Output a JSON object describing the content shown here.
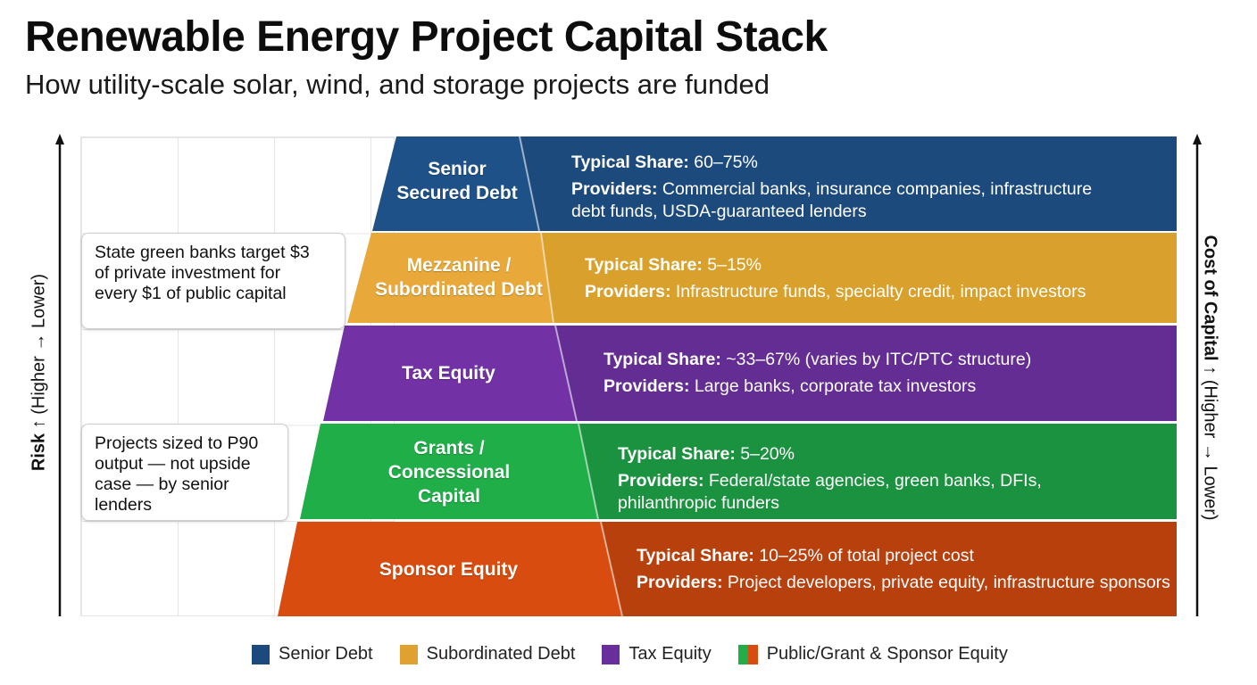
{
  "title": "Renewable Energy Project Capital Stack",
  "subtitle": "How utility-scale solar, wind, and storage projects are funded",
  "tiers": [
    {
      "name_lines": [
        "Senior",
        "Secured Debt"
      ],
      "share_label": "Typical Share:",
      "share_value": " 60–75%",
      "providers_label": "Providers:",
      "providers_lines": [
        " Commercial banks, insurance companies, infrastructure",
        "debt funds, USDA-guaranteed lenders"
      ],
      "color_left": "#1f5189",
      "color_right": "#1d4a7c"
    },
    {
      "name_lines": [
        "Mezzanine /",
        "Subordinated Debt"
      ],
      "share_label": "Typical Share:",
      "share_value": " 5–15%",
      "providers_label": "Providers:",
      "providers_lines": [
        " Infrastructure funds, specialty credit, impact investors"
      ],
      "color_left": "#e8a93a",
      "color_right": "#d9a02b"
    },
    {
      "name_lines": [
        "Tax Equity"
      ],
      "share_label": "Typical Share:",
      "share_value": " ~33–67% (varies by ITC/PTC structure)",
      "providers_label": "Providers:",
      "providers_lines": [
        " Large banks, corporate tax investors"
      ],
      "color_left": "#7232a6",
      "color_right": "#632d94"
    },
    {
      "name_lines": [
        "Grants /",
        "Concessional",
        "Capital"
      ],
      "share_label": "Typical Share:",
      "share_value": " 5–20%",
      "providers_label": "Providers:",
      "providers_lines": [
        " Federal/state agencies, green banks, DFIs,",
        "philanthropic funders"
      ],
      "color_left": "#1fae48",
      "color_right": "#1b923f"
    },
    {
      "name_lines": [
        "Sponsor Equity"
      ],
      "share_label": "Typical Share:",
      "share_value": " 10–25% of total project cost",
      "providers_label": "Providers:",
      "providers_lines": [
        " Project developers, private equity, infrastructure sponsors"
      ],
      "color_left": "#d94c0f",
      "color_right": "#b8400d"
    }
  ],
  "callouts": [
    {
      "lines": [
        "State green banks target $3",
        "of private investment for",
        "every $1 of public capital"
      ]
    },
    {
      "lines": [
        "Projects sized to P90",
        "output — not upside",
        "case — by senior",
        "lenders"
      ]
    }
  ],
  "axes": {
    "left_bold": "Risk ↑",
    "left_rest": " (Higher → Lower)",
    "right_bold": "Cost of Capital ↑",
    "right_rest": " (Higher → Lower)",
    "arrow_color": "#111111"
  },
  "legend": [
    {
      "label": "Senior Debt",
      "colors": [
        "#1d4a7c"
      ]
    },
    {
      "label": "Subordinated Debt",
      "colors": [
        "#e0a22f"
      ]
    },
    {
      "label": "Tax Equity",
      "colors": [
        "#6a2d9c"
      ]
    },
    {
      "label": "Public/Grant & Sponsor Equity",
      "colors": [
        "#1fae48",
        "#d94c0f"
      ]
    }
  ]
}
